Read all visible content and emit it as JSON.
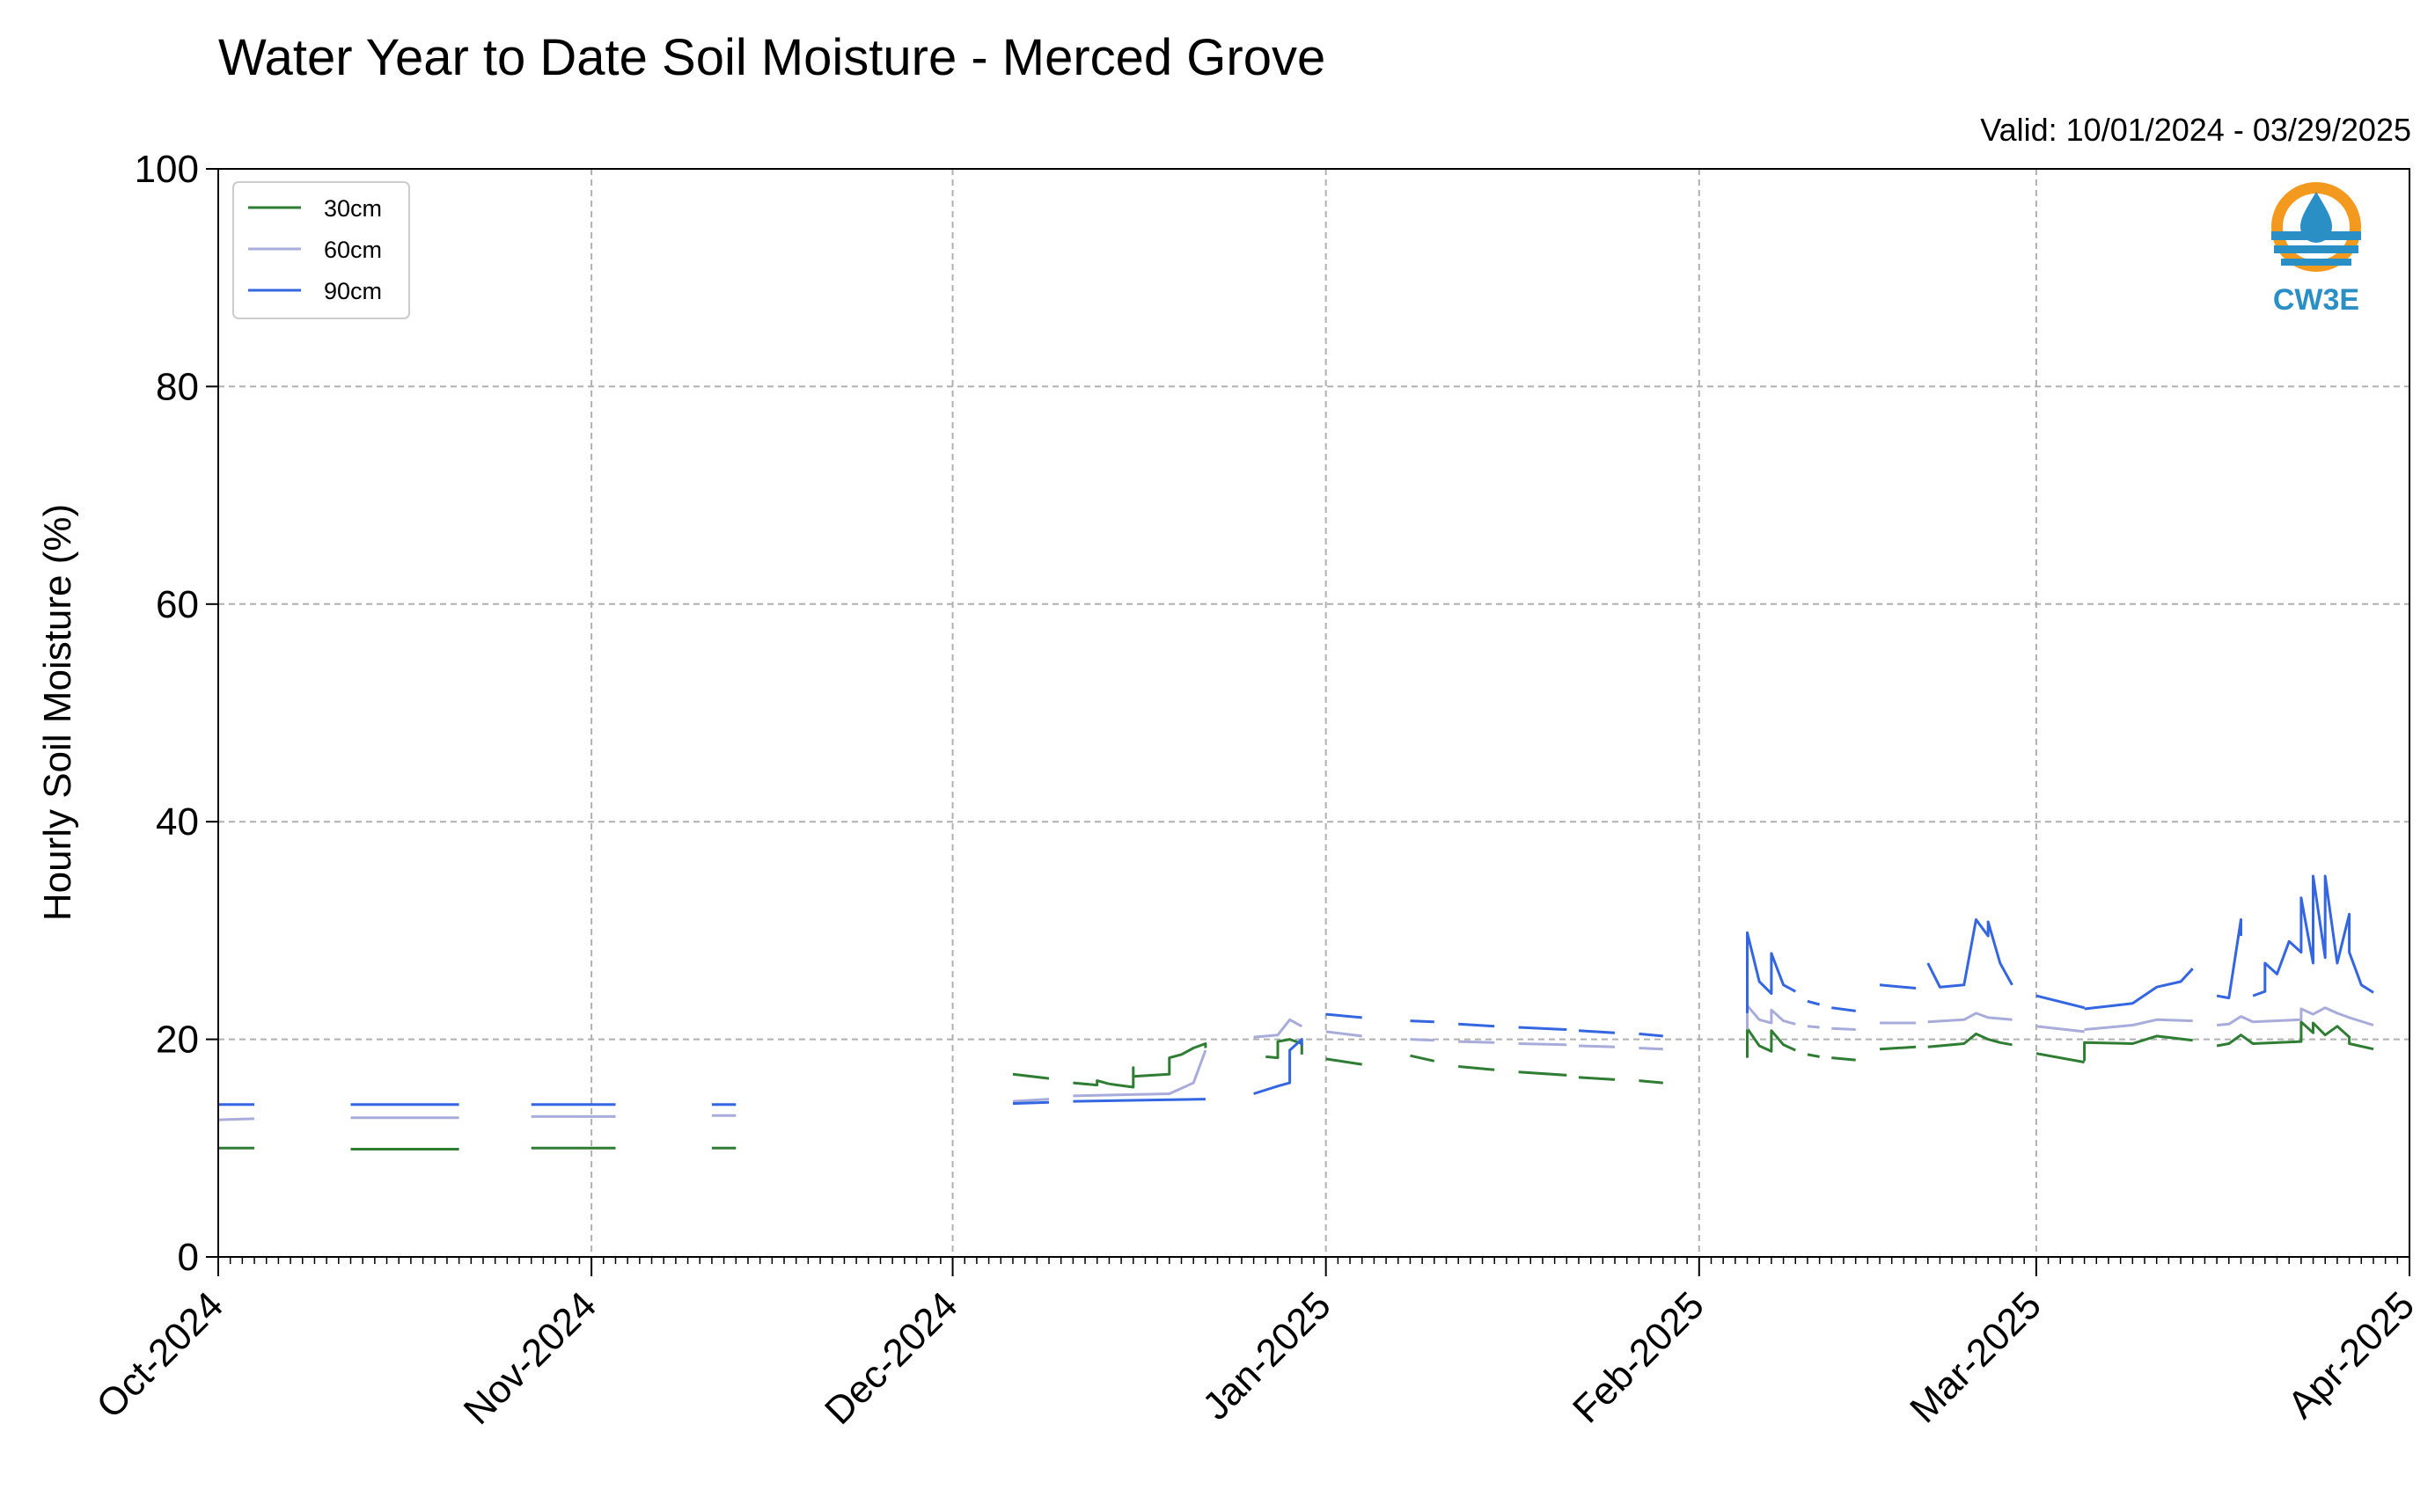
{
  "chart_data": {
    "type": "line",
    "title": "Water Year to Date Soil Moisture - Merced Grove",
    "subtitle": "Valid: 10/01/2024 - 03/29/2025",
    "xlabel": "",
    "ylabel": "Hourly Soil Moisture (%)",
    "ylim": [
      0,
      100
    ],
    "yticks": [
      0,
      20,
      40,
      60,
      80,
      100
    ],
    "xlim": [
      "2024-10-01",
      "2025-04-01"
    ],
    "xtick_labels": [
      "Oct-2024",
      "Nov-2024",
      "Dec-2024",
      "Jan-2025",
      "Feb-2025",
      "Mar-2025",
      "Apr-2025"
    ],
    "xtick_dates": [
      "2024-10-01",
      "2024-11-01",
      "2024-12-01",
      "2025-01-01",
      "2025-02-01",
      "2025-03-01",
      "2025-04-01"
    ],
    "grid": true,
    "legend": "top-left",
    "series": [
      {
        "name": "30cm",
        "color": "#2e7d32",
        "segments": [
          [
            [
              "2024-10-01",
              10.0
            ],
            [
              "2024-10-04",
              10.0
            ]
          ],
          [
            [
              "2024-10-12",
              9.9
            ],
            [
              "2024-10-21",
              9.9
            ]
          ],
          [
            [
              "2024-10-27",
              10.0
            ],
            [
              "2024-11-03",
              10.0
            ]
          ],
          [
            [
              "2024-11-11",
              10.0
            ],
            [
              "2024-11-13",
              10.0
            ]
          ],
          [
            [
              "2024-12-06",
              16.8
            ],
            [
              "2024-12-09",
              16.4
            ]
          ],
          [
            [
              "2024-12-11",
              16.0
            ],
            [
              "2024-12-13",
              15.8
            ],
            [
              "2024-12-13",
              16.2
            ],
            [
              "2024-12-14",
              15.9
            ]
          ],
          [
            [
              "2024-12-14",
              15.9
            ],
            [
              "2024-12-16",
              15.6
            ],
            [
              "2024-12-16",
              17.4
            ],
            [
              "2024-12-16",
              16.6
            ],
            [
              "2024-12-19",
              16.8
            ],
            [
              "2024-12-19",
              18.3
            ],
            [
              "2024-12-20",
              18.6
            ],
            [
              "2024-12-21",
              19.2
            ],
            [
              "2024-12-22",
              19.6
            ],
            [
              "2024-12-22",
              19.2
            ]
          ],
          [
            [
              "2024-12-27",
              18.4
            ],
            [
              "2024-12-28",
              18.3
            ],
            [
              "2024-12-28",
              19.8
            ],
            [
              "2024-12-29",
              20.0
            ],
            [
              "2024-12-30",
              19.6
            ],
            [
              "2024-12-30",
              18.6
            ]
          ],
          [
            [
              "2025-01-01",
              18.2
            ],
            [
              "2025-01-04",
              17.7
            ]
          ],
          [
            [
              "2025-01-08",
              18.5
            ],
            [
              "2025-01-10",
              18.0
            ]
          ],
          [
            [
              "2025-01-12",
              17.5
            ],
            [
              "2025-01-15",
              17.2
            ]
          ],
          [
            [
              "2025-01-17",
              17.0
            ],
            [
              "2025-01-21",
              16.7
            ]
          ],
          [
            [
              "2025-01-22",
              16.5
            ],
            [
              "2025-01-25",
              16.3
            ]
          ],
          [
            [
              "2025-01-27",
              16.2
            ],
            [
              "2025-01-29",
              16.0
            ]
          ],
          [
            [
              "2025-02-05",
              18.3
            ],
            [
              "2025-02-05",
              21.0
            ],
            [
              "2025-02-06",
              19.4
            ],
            [
              "2025-02-07",
              18.9
            ],
            [
              "2025-02-07",
              20.8
            ],
            [
              "2025-02-08",
              19.5
            ],
            [
              "2025-02-09",
              19.0
            ]
          ],
          [
            [
              "2025-02-10",
              18.6
            ],
            [
              "2025-02-11",
              18.4
            ]
          ],
          [
            [
              "2025-02-12",
              18.3
            ],
            [
              "2025-02-14",
              18.1
            ]
          ],
          [
            [
              "2025-02-16",
              19.1
            ],
            [
              "2025-02-19",
              19.3
            ]
          ],
          [
            [
              "2025-02-20",
              19.3
            ],
            [
              "2025-02-23",
              19.6
            ],
            [
              "2025-02-24",
              20.5
            ],
            [
              "2025-02-25",
              20.0
            ],
            [
              "2025-02-26",
              19.7
            ],
            [
              "2025-02-27",
              19.5
            ]
          ],
          [
            [
              "2025-03-01",
              18.7
            ],
            [
              "2025-03-05",
              17.9
            ]
          ],
          [
            [
              "2025-03-05",
              18.0
            ],
            [
              "2025-03-05",
              19.7
            ],
            [
              "2025-03-09",
              19.6
            ],
            [
              "2025-03-11",
              20.3
            ],
            [
              "2025-03-14",
              19.9
            ]
          ],
          [
            [
              "2025-03-16",
              19.4
            ],
            [
              "2025-03-17",
              19.6
            ],
            [
              "2025-03-18",
              20.4
            ],
            [
              "2025-03-19",
              19.6
            ],
            [
              "2025-03-23",
              19.8
            ],
            [
              "2025-03-23",
              21.6
            ],
            [
              "2025-03-24",
              20.6
            ],
            [
              "2025-03-24",
              21.5
            ],
            [
              "2025-03-25",
              20.4
            ],
            [
              "2025-03-26",
              21.2
            ],
            [
              "2025-03-27",
              20.2
            ],
            [
              "2025-03-27",
              19.6
            ],
            [
              "2025-03-29",
              19.1
            ]
          ]
        ]
      },
      {
        "name": "60cm",
        "color": "#a8acdb",
        "segments": [
          [
            [
              "2024-10-01",
              12.6
            ],
            [
              "2024-10-04",
              12.7
            ]
          ],
          [
            [
              "2024-10-12",
              12.8
            ],
            [
              "2024-10-21",
              12.8
            ]
          ],
          [
            [
              "2024-10-27",
              12.9
            ],
            [
              "2024-11-03",
              12.9
            ]
          ],
          [
            [
              "2024-11-11",
              13.0
            ],
            [
              "2024-11-13",
              13.0
            ]
          ],
          [
            [
              "2024-12-06",
              14.3
            ],
            [
              "2024-12-09",
              14.5
            ]
          ],
          [
            [
              "2024-12-11",
              14.8
            ],
            [
              "2024-12-19",
              15.0
            ],
            [
              "2024-12-21",
              16.0
            ],
            [
              "2024-12-22",
              19.0
            ]
          ],
          [
            [
              "2024-12-26",
              20.2
            ],
            [
              "2024-12-28",
              20.4
            ],
            [
              "2024-12-29",
              21.8
            ],
            [
              "2024-12-30",
              21.2
            ]
          ],
          [
            [
              "2025-01-01",
              20.7
            ],
            [
              "2025-01-04",
              20.3
            ]
          ],
          [
            [
              "2025-01-08",
              20.0
            ],
            [
              "2025-01-10",
              19.9
            ]
          ],
          [
            [
              "2025-01-12",
              19.8
            ],
            [
              "2025-01-15",
              19.7
            ]
          ],
          [
            [
              "2025-01-17",
              19.6
            ],
            [
              "2025-01-21",
              19.5
            ]
          ],
          [
            [
              "2025-01-22",
              19.4
            ],
            [
              "2025-01-25",
              19.3
            ]
          ],
          [
            [
              "2025-01-27",
              19.2
            ],
            [
              "2025-01-29",
              19.1
            ]
          ],
          [
            [
              "2025-02-05",
              20.9
            ],
            [
              "2025-02-05",
              23.1
            ],
            [
              "2025-02-06",
              21.8
            ],
            [
              "2025-02-07",
              21.5
            ],
            [
              "2025-02-07",
              22.7
            ],
            [
              "2025-02-08",
              21.7
            ],
            [
              "2025-02-09",
              21.4
            ]
          ],
          [
            [
              "2025-02-10",
              21.2
            ],
            [
              "2025-02-11",
              21.1
            ]
          ],
          [
            [
              "2025-02-12",
              21.0
            ],
            [
              "2025-02-14",
              20.9
            ]
          ],
          [
            [
              "2025-02-16",
              21.5
            ],
            [
              "2025-02-19",
              21.5
            ]
          ],
          [
            [
              "2025-02-20",
              21.6
            ],
            [
              "2025-02-23",
              21.8
            ],
            [
              "2025-02-24",
              22.4
            ],
            [
              "2025-02-25",
              22.0
            ],
            [
              "2025-02-27",
              21.8
            ]
          ],
          [
            [
              "2025-03-01",
              21.2
            ],
            [
              "2025-03-05",
              20.7
            ]
          ],
          [
            [
              "2025-03-05",
              20.9
            ],
            [
              "2025-03-09",
              21.3
            ],
            [
              "2025-03-11",
              21.8
            ],
            [
              "2025-03-14",
              21.7
            ]
          ],
          [
            [
              "2025-03-16",
              21.3
            ],
            [
              "2025-03-17",
              21.4
            ],
            [
              "2025-03-18",
              22.1
            ],
            [
              "2025-03-19",
              21.6
            ],
            [
              "2025-03-23",
              21.8
            ],
            [
              "2025-03-23",
              22.8
            ],
            [
              "2025-03-24",
              22.3
            ],
            [
              "2025-03-25",
              22.9
            ],
            [
              "2025-03-26",
              22.4
            ],
            [
              "2025-03-27",
              22.0
            ],
            [
              "2025-03-29",
              21.3
            ]
          ]
        ]
      },
      {
        "name": "90cm",
        "color": "#3366e0",
        "segments": [
          [
            [
              "2024-10-01",
              14.0
            ],
            [
              "2024-10-04",
              14.0
            ]
          ],
          [
            [
              "2024-10-12",
              14.0
            ],
            [
              "2024-10-21",
              14.0
            ]
          ],
          [
            [
              "2024-10-27",
              14.0
            ],
            [
              "2024-11-03",
              14.0
            ]
          ],
          [
            [
              "2024-11-11",
              14.0
            ],
            [
              "2024-11-13",
              14.0
            ]
          ],
          [
            [
              "2024-12-06",
              14.1
            ],
            [
              "2024-12-09",
              14.2
            ]
          ],
          [
            [
              "2024-12-11",
              14.3
            ],
            [
              "2024-12-22",
              14.5
            ]
          ],
          [
            [
              "2024-12-26",
              15.0
            ],
            [
              "2024-12-28",
              15.7
            ],
            [
              "2024-12-29",
              16.0
            ],
            [
              "2024-12-29",
              19.0
            ],
            [
              "2024-12-30",
              20.0
            ],
            [
              "2024-12-30",
              19.4
            ]
          ],
          [
            [
              "2025-01-01",
              22.3
            ],
            [
              "2025-01-04",
              22.0
            ]
          ],
          [
            [
              "2025-01-08",
              21.7
            ],
            [
              "2025-01-10",
              21.6
            ]
          ],
          [
            [
              "2025-01-12",
              21.4
            ],
            [
              "2025-01-15",
              21.2
            ]
          ],
          [
            [
              "2025-01-17",
              21.1
            ],
            [
              "2025-01-21",
              20.9
            ]
          ],
          [
            [
              "2025-01-22",
              20.8
            ],
            [
              "2025-01-25",
              20.6
            ]
          ],
          [
            [
              "2025-01-27",
              20.5
            ],
            [
              "2025-01-29",
              20.3
            ]
          ],
          [
            [
              "2025-02-05",
              22.4
            ],
            [
              "2025-02-05",
              29.8
            ],
            [
              "2025-02-06",
              25.3
            ],
            [
              "2025-02-07",
              24.2
            ],
            [
              "2025-02-07",
              27.9
            ],
            [
              "2025-02-08",
              25.0
            ],
            [
              "2025-02-09",
              24.4
            ]
          ],
          [
            [
              "2025-02-10",
              23.5
            ],
            [
              "2025-02-11",
              23.2
            ]
          ],
          [
            [
              "2025-02-12",
              22.9
            ],
            [
              "2025-02-14",
              22.6
            ]
          ],
          [
            [
              "2025-02-16",
              25.0
            ],
            [
              "2025-02-19",
              24.7
            ]
          ],
          [
            [
              "2025-02-20",
              27.0
            ],
            [
              "2025-02-21",
              24.8
            ],
            [
              "2025-02-23",
              25.0
            ],
            [
              "2025-02-24",
              31.0
            ],
            [
              "2025-02-25",
              29.5
            ],
            [
              "2025-02-25",
              30.8
            ],
            [
              "2025-02-26",
              27.0
            ],
            [
              "2025-02-27",
              25.0
            ]
          ],
          [
            [
              "2025-03-01",
              24.0
            ],
            [
              "2025-03-05",
              22.9
            ]
          ],
          [
            [
              "2025-03-05",
              22.8
            ],
            [
              "2025-03-09",
              23.3
            ],
            [
              "2025-03-11",
              24.8
            ],
            [
              "2025-03-13",
              25.3
            ],
            [
              "2025-03-14",
              26.5
            ]
          ],
          [
            [
              "2025-03-16",
              24.0
            ],
            [
              "2025-03-17",
              23.8
            ],
            [
              "2025-03-18",
              31.0
            ],
            [
              "2025-03-18",
              29.5
            ]
          ],
          [
            [
              "2025-03-19",
              24.0
            ],
            [
              "2025-03-20",
              24.4
            ],
            [
              "2025-03-20",
              27.0
            ],
            [
              "2025-03-21",
              26.0
            ],
            [
              "2025-03-22",
              29.0
            ],
            [
              "2025-03-23",
              28.0
            ],
            [
              "2025-03-23",
              33.0
            ],
            [
              "2025-03-24",
              27.0
            ],
            [
              "2025-03-24",
              35.0
            ],
            [
              "2025-03-25",
              27.5
            ],
            [
              "2025-03-25",
              35.0
            ],
            [
              "2025-03-26",
              27.0
            ],
            [
              "2025-03-27",
              31.5
            ],
            [
              "2025-03-27",
              28.0
            ],
            [
              "2025-03-28",
              25.0
            ],
            [
              "2025-03-29",
              24.3
            ]
          ]
        ]
      }
    ]
  },
  "logo": {
    "text": "CW3E",
    "icon": "water-drop-logo-icon",
    "colors": {
      "sun": "#f39a1e",
      "water": "#2a8fc4"
    }
  }
}
